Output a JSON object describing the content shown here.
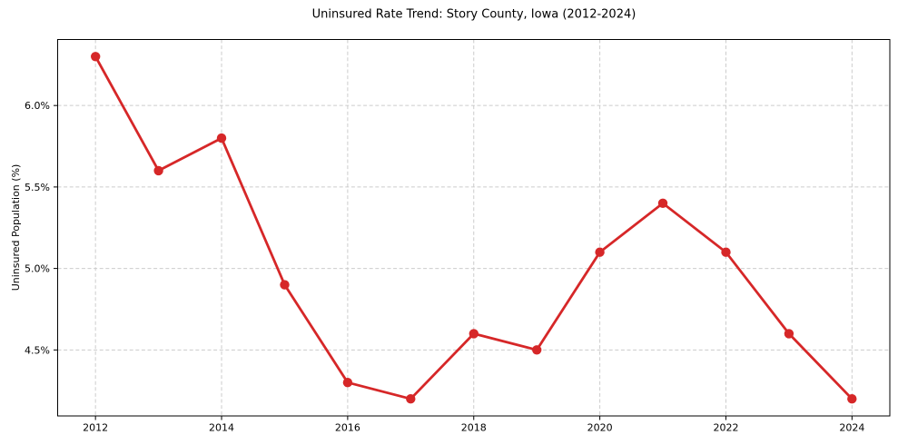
{
  "figure": {
    "background_color": "#ffffff",
    "text_color": "#000000"
  },
  "chart_data": {
    "type": "line",
    "title": "Uninsured Rate Trend: Story County, Iowa (2012-2024)",
    "xlabel": "",
    "ylabel": "Uninsured Population (%)",
    "x": [
      2012,
      2013,
      2014,
      2015,
      2016,
      2017,
      2018,
      2019,
      2020,
      2021,
      2022,
      2023,
      2024
    ],
    "values": [
      6.3,
      5.6,
      5.8,
      4.9,
      4.3,
      4.2,
      4.6,
      4.5,
      5.1,
      5.4,
      5.1,
      4.6,
      4.2
    ],
    "xlim": [
      2011.4,
      2024.6
    ],
    "ylim": [
      4.095,
      6.405
    ],
    "xticks": {
      "values": [
        2012,
        2014,
        2016,
        2018,
        2020,
        2022,
        2024
      ],
      "labels": [
        "2012",
        "2014",
        "2016",
        "2018",
        "2020",
        "2022",
        "2024"
      ]
    },
    "yticks": {
      "values": [
        4.5,
        5.0,
        5.5,
        6.0
      ],
      "labels": [
        "4.5%",
        "5.0%",
        "5.5%",
        "6.0%"
      ]
    },
    "grid": true,
    "grid_style": "dashed",
    "legend": false,
    "line_color": "#d62728",
    "marker": "circle",
    "grid_color": "#cccccc",
    "axis_color": "#000000"
  }
}
